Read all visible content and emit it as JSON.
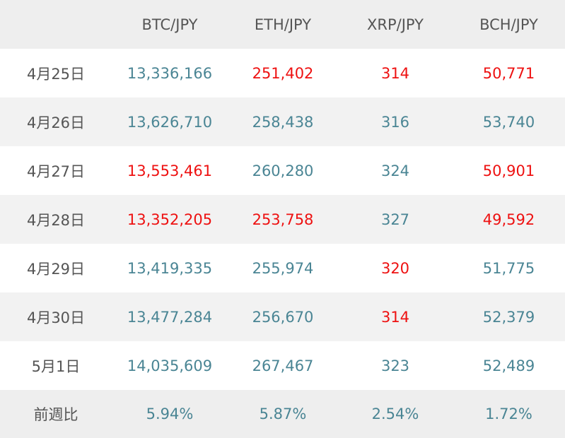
{
  "table": {
    "headers": [
      "",
      "BTC/JPY",
      "ETH/JPY",
      "XRP/JPY",
      "BCH/JPY"
    ],
    "rows": [
      {
        "date": "4月25日",
        "cells": [
          {
            "value": "13,336,166",
            "down": false
          },
          {
            "value": "251,402",
            "down": true
          },
          {
            "value": "314",
            "down": true
          },
          {
            "value": "50,771",
            "down": true
          }
        ]
      },
      {
        "date": "4月26日",
        "cells": [
          {
            "value": "13,626,710",
            "down": false
          },
          {
            "value": "258,438",
            "down": false
          },
          {
            "value": "316",
            "down": false
          },
          {
            "value": "53,740",
            "down": false
          }
        ]
      },
      {
        "date": "4月27日",
        "cells": [
          {
            "value": "13,553,461",
            "down": true
          },
          {
            "value": "260,280",
            "down": false
          },
          {
            "value": "324",
            "down": false
          },
          {
            "value": "50,901",
            "down": true
          }
        ]
      },
      {
        "date": "4月28日",
        "cells": [
          {
            "value": "13,352,205",
            "down": true
          },
          {
            "value": "253,758",
            "down": true
          },
          {
            "value": "327",
            "down": false
          },
          {
            "value": "49,592",
            "down": true
          }
        ]
      },
      {
        "date": "4月29日",
        "cells": [
          {
            "value": "13,419,335",
            "down": false
          },
          {
            "value": "255,974",
            "down": false
          },
          {
            "value": "320",
            "down": true
          },
          {
            "value": "51,775",
            "down": false
          }
        ]
      },
      {
        "date": "4月30日",
        "cells": [
          {
            "value": "13,477,284",
            "down": false
          },
          {
            "value": "256,670",
            "down": false
          },
          {
            "value": "314",
            "down": true
          },
          {
            "value": "52,379",
            "down": false
          }
        ]
      },
      {
        "date": "5月1日",
        "cells": [
          {
            "value": "14,035,609",
            "down": false
          },
          {
            "value": "267,467",
            "down": false
          },
          {
            "value": "323",
            "down": false
          },
          {
            "value": "52,489",
            "down": false
          }
        ]
      }
    ],
    "footer": {
      "label": "前週比",
      "values": [
        "5.94%",
        "5.87%",
        "2.54%",
        "1.72%"
      ]
    }
  },
  "colors": {
    "up_or_neutral": "#4a8594",
    "down": "#ee1111",
    "header_bg": "#eeeeee",
    "stripe_bg": "#f2f2f2",
    "label_text": "#555555"
  }
}
